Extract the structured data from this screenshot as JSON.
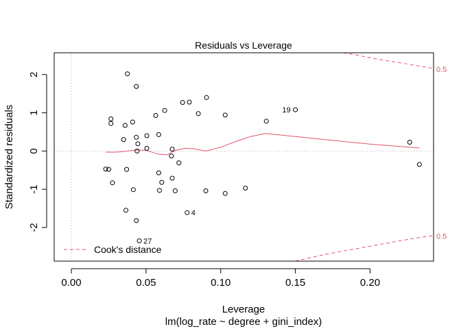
{
  "chart_data": {
    "type": "scatter",
    "title": "Residuals vs Leverage",
    "xlabel": "Leverage",
    "subtitle": "lm(log_rate ~ degree + gini_index)",
    "ylabel": "Standardized residuals",
    "xlim": [
      -0.0115,
      0.2425
    ],
    "ylim": [
      -2.88,
      2.57
    ],
    "xticks": [
      0.0,
      0.05,
      0.1,
      0.15,
      0.2
    ],
    "xtick_labels": [
      "0.00",
      "0.05",
      "0.10",
      "0.15",
      "0.20"
    ],
    "yticks": [
      -2,
      -1,
      0,
      1,
      2
    ],
    "ytick_labels": [
      "-2",
      "-1",
      "0",
      "1",
      "2"
    ],
    "grid": false,
    "reference_lines": {
      "x": 0,
      "y": 0
    },
    "points": [
      {
        "x": 0.0375,
        "y": 2.02
      },
      {
        "x": 0.0435,
        "y": 1.69
      },
      {
        "x": 0.0905,
        "y": 1.4
      },
      {
        "x": 0.0745,
        "y": 1.27
      },
      {
        "x": 0.079,
        "y": 1.28
      },
      {
        "x": 0.15,
        "y": 1.08,
        "label": "19"
      },
      {
        "x": 0.0625,
        "y": 1.06
      },
      {
        "x": 0.085,
        "y": 0.98
      },
      {
        "x": 0.103,
        "y": 0.94
      },
      {
        "x": 0.0565,
        "y": 0.93
      },
      {
        "x": 0.0265,
        "y": 0.84
      },
      {
        "x": 0.1305,
        "y": 0.78
      },
      {
        "x": 0.041,
        "y": 0.76
      },
      {
        "x": 0.0265,
        "y": 0.72
      },
      {
        "x": 0.036,
        "y": 0.67
      },
      {
        "x": 0.0585,
        "y": 0.43
      },
      {
        "x": 0.0505,
        "y": 0.4
      },
      {
        "x": 0.0435,
        "y": 0.36
      },
      {
        "x": 0.035,
        "y": 0.3
      },
      {
        "x": 0.2265,
        "y": 0.23
      },
      {
        "x": 0.0445,
        "y": 0.19
      },
      {
        "x": 0.0505,
        "y": 0.07
      },
      {
        "x": 0.0675,
        "y": 0.05
      },
      {
        "x": 0.044,
        "y": 0.0
      },
      {
        "x": 0.067,
        "y": -0.13
      },
      {
        "x": 0.072,
        "y": -0.31
      },
      {
        "x": 0.233,
        "y": -0.35
      },
      {
        "x": 0.023,
        "y": -0.47
      },
      {
        "x": 0.025,
        "y": -0.48
      },
      {
        "x": 0.037,
        "y": -0.48
      },
      {
        "x": 0.0585,
        "y": -0.57
      },
      {
        "x": 0.0675,
        "y": -0.71
      },
      {
        "x": 0.0605,
        "y": -0.82
      },
      {
        "x": 0.0275,
        "y": -0.83
      },
      {
        "x": 0.1165,
        "y": -0.97
      },
      {
        "x": 0.0415,
        "y": -1.01
      },
      {
        "x": 0.059,
        "y": -1.03
      },
      {
        "x": 0.0695,
        "y": -1.04
      },
      {
        "x": 0.09,
        "y": -1.04
      },
      {
        "x": 0.103,
        "y": -1.11
      },
      {
        "x": 0.0365,
        "y": -1.55
      },
      {
        "x": 0.0775,
        "y": -1.61,
        "label": "4"
      },
      {
        "x": 0.0435,
        "y": -1.82
      },
      {
        "x": 0.0455,
        "y": -2.35,
        "label": "27"
      }
    ],
    "smooth_line": {
      "color": "#DF536B",
      "x": [
        0.023,
        0.03,
        0.036,
        0.043,
        0.05,
        0.058,
        0.064,
        0.07,
        0.076,
        0.082,
        0.09,
        0.1,
        0.11,
        0.12,
        0.13,
        0.15,
        0.2,
        0.233
      ],
      "y": [
        -0.03,
        -0.03,
        -0.01,
        0.03,
        0.02,
        -0.08,
        -0.1,
        0.02,
        0.07,
        0.06,
        0.0,
        0.1,
        0.25,
        0.38,
        0.46,
        0.38,
        0.18,
        0.08
      ]
    },
    "cooks_distance": {
      "name": "Cook's distance",
      "color": "#DF536B",
      "level_labels": [
        "0.5",
        "0.5"
      ],
      "upper": {
        "x": [
          0.182,
          0.19,
          0.2,
          0.21,
          0.22,
          0.23,
          0.2425
        ],
        "y": [
          2.58,
          2.52,
          2.44,
          2.37,
          2.31,
          2.24,
          2.16
        ]
      },
      "lower": {
        "x": [
          0.15,
          0.16,
          0.17,
          0.18,
          0.19,
          0.2,
          0.21,
          0.22,
          0.23,
          0.2425
        ],
        "y": [
          -2.88,
          -2.79,
          -2.7,
          -2.63,
          -2.56,
          -2.49,
          -2.42,
          -2.35,
          -2.28,
          -2.21
        ]
      }
    },
    "legend": {
      "position": "bottom-left",
      "entries": [
        "Cook's distance"
      ]
    }
  }
}
